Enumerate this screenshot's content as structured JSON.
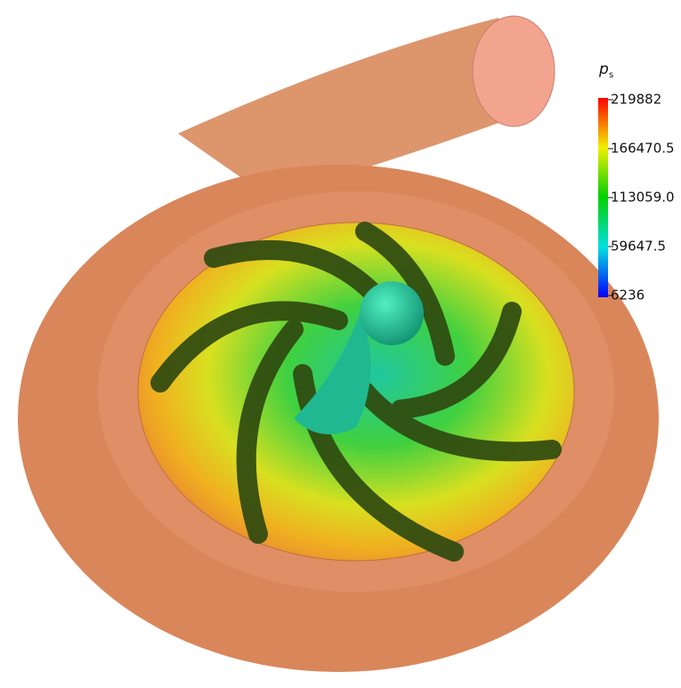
{
  "colorbar": {
    "title": "p",
    "subscript": "s",
    "ticks": [
      219882,
      166470.5,
      {
        "value": 113059,
        "label": "113059.0"
      },
      59647.5,
      6236
    ]
  }
}
